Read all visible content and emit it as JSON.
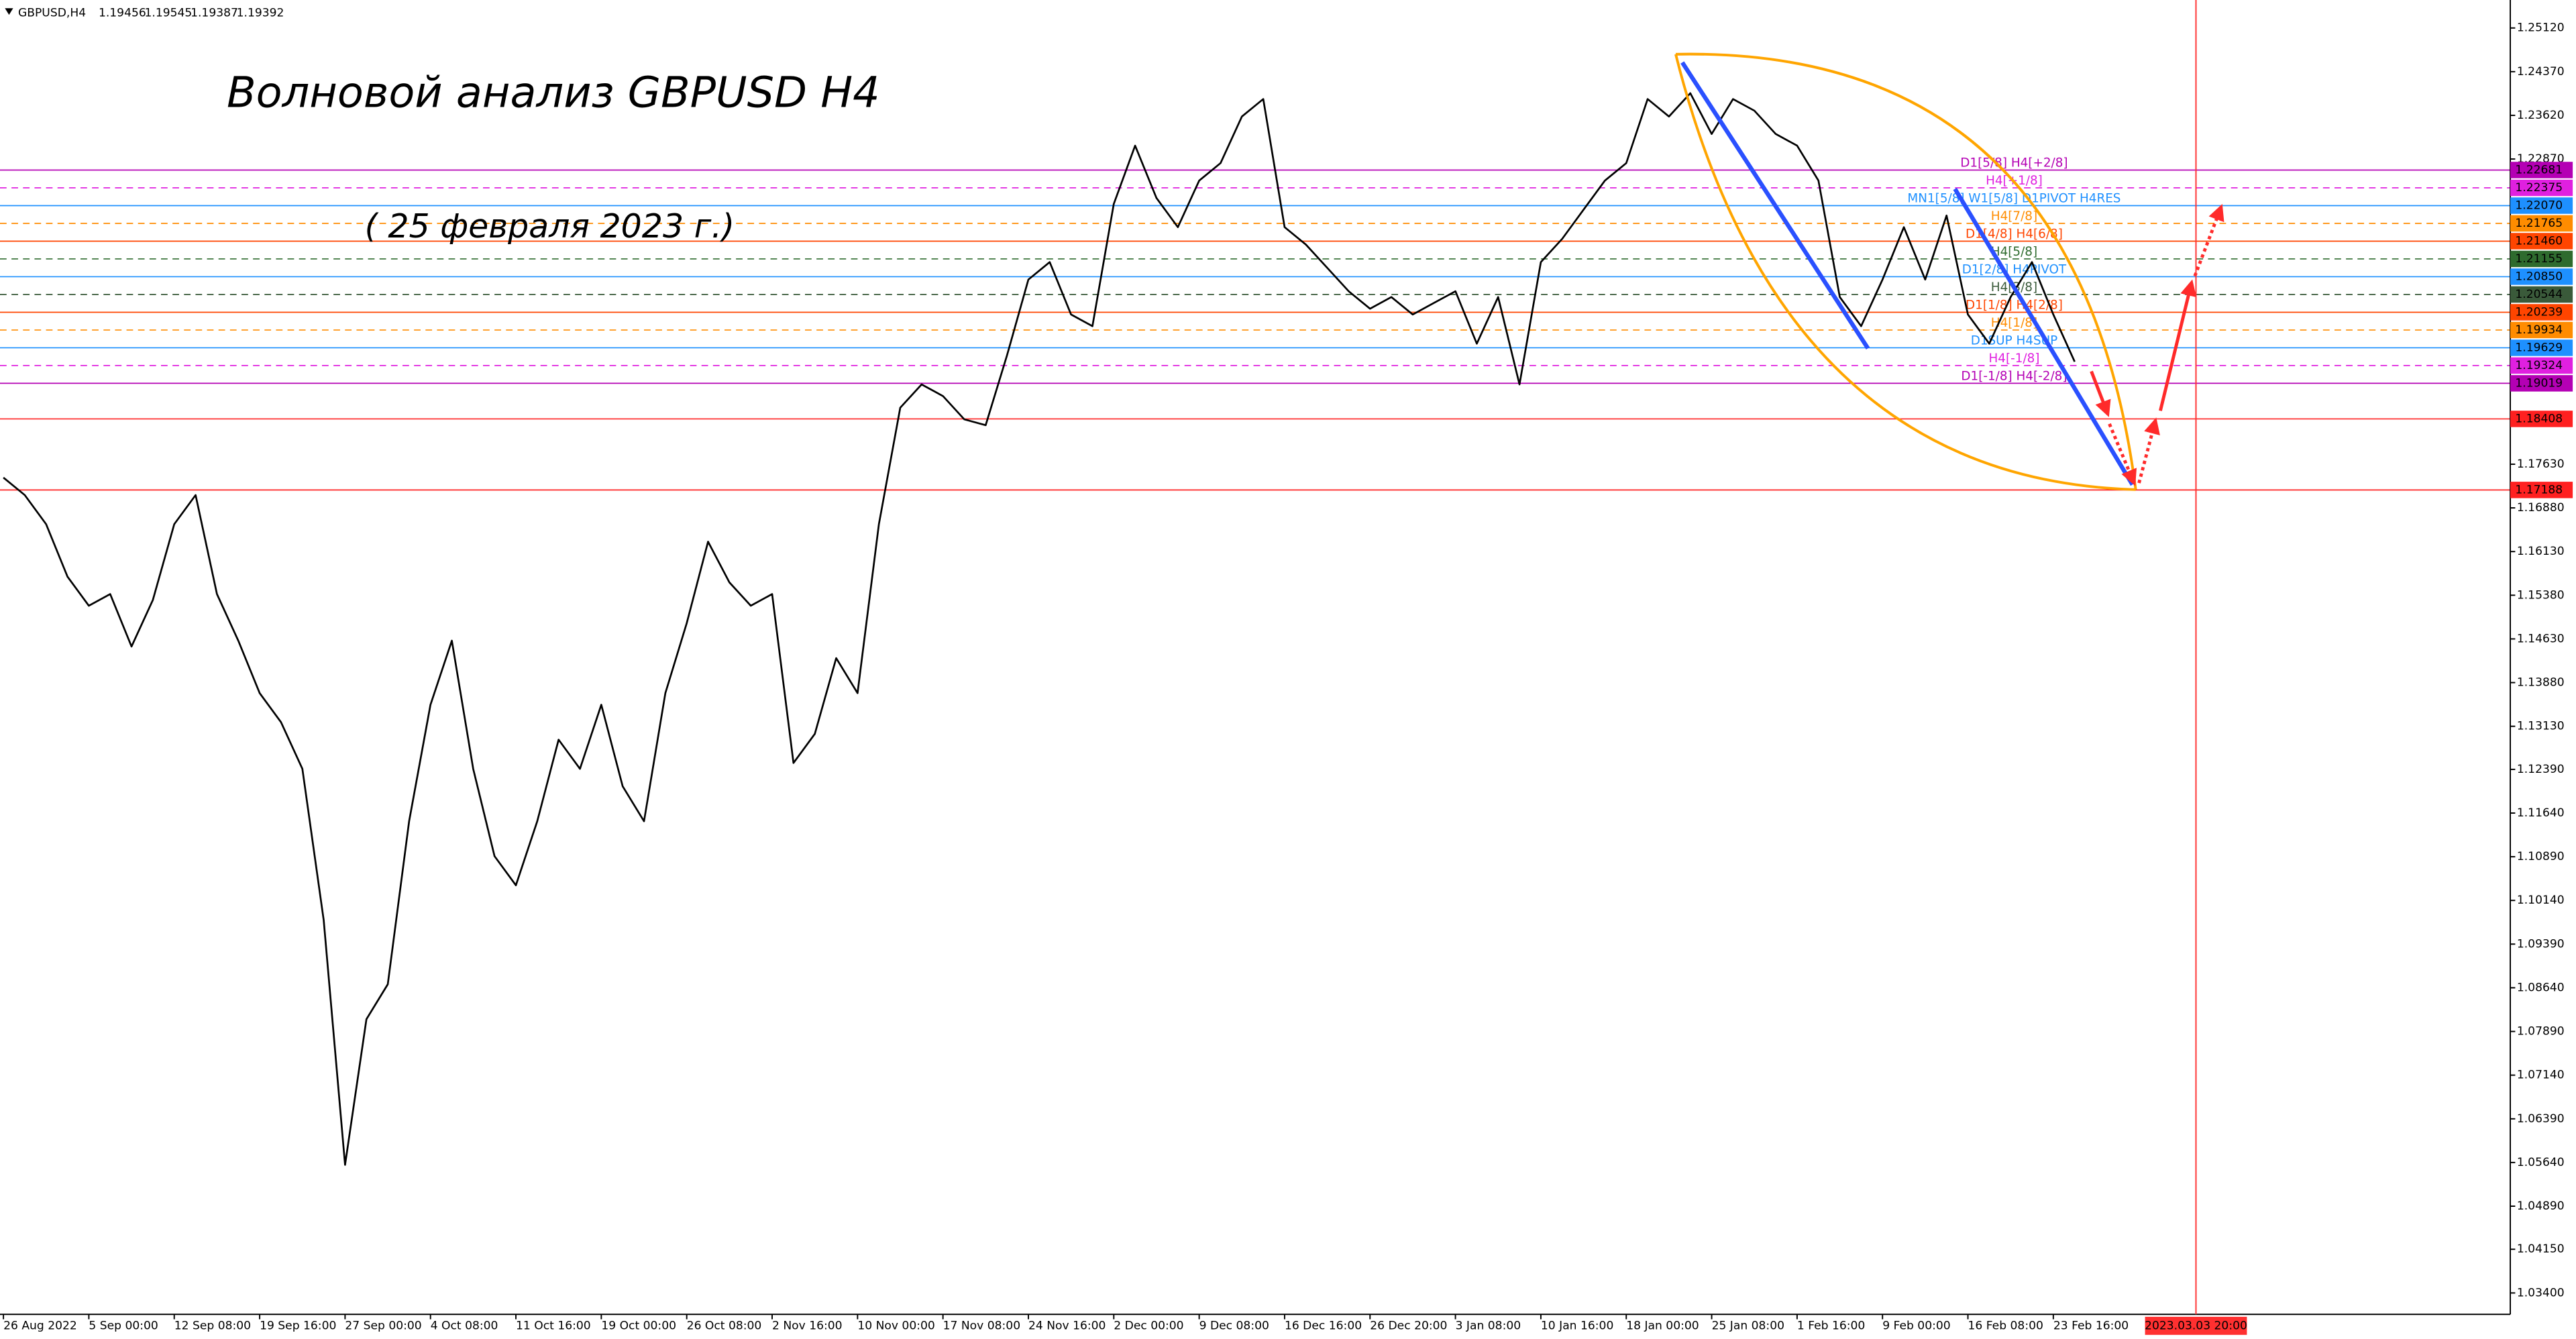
{
  "chart_data": {
    "type": "line",
    "header": {
      "symbol": "GBPUSD,H4",
      "ohlc": [
        1.19456,
        1.19545,
        1.19387,
        1.19392
      ]
    },
    "title": "Волновой анализ GBPUSD H4",
    "subtitle": "( 25 февраля 2023 г.)",
    "xlim": [
      -0.04,
      29.35
    ],
    "ylim": [
      1.03033,
      1.25459
    ],
    "grid": false,
    "xticks": [
      {
        "value": 0,
        "label": "26 Aug 2022"
      },
      {
        "value": 1,
        "label": "5 Sep 00:00"
      },
      {
        "value": 2,
        "label": "12 Sep 08:00"
      },
      {
        "value": 3,
        "label": "19 Sep 16:00"
      },
      {
        "value": 4,
        "label": "27 Sep 00:00"
      },
      {
        "value": 5,
        "label": "4 Oct 08:00"
      },
      {
        "value": 6,
        "label": "11 Oct 16:00"
      },
      {
        "value": 7,
        "label": "19 Oct 00:00"
      },
      {
        "value": 8,
        "label": "26 Oct 08:00"
      },
      {
        "value": 9,
        "label": "2 Nov 16:00"
      },
      {
        "value": 10,
        "label": "10 Nov 00:00"
      },
      {
        "value": 11,
        "label": "17 Nov 08:00"
      },
      {
        "value": 12,
        "label": "24 Nov 16:00"
      },
      {
        "value": 13,
        "label": "2 Dec 00:00"
      },
      {
        "value": 14,
        "label": "9 Dec 08:00"
      },
      {
        "value": 15,
        "label": "16 Dec 16:00"
      },
      {
        "value": 16,
        "label": "26 Dec 20:00"
      },
      {
        "value": 17,
        "label": "3 Jan 08:00"
      },
      {
        "value": 18,
        "label": "10 Jan 16:00"
      },
      {
        "value": 19,
        "label": "18 Jan 00:00"
      },
      {
        "value": 20,
        "label": "25 Jan 08:00"
      },
      {
        "value": 21,
        "label": "1 Feb 16:00"
      },
      {
        "value": 22,
        "label": "9 Feb 00:00"
      },
      {
        "value": 23,
        "label": "16 Feb 08:00"
      },
      {
        "value": 24,
        "label": "23 Feb 16:00"
      }
    ],
    "cursor": {
      "value": 25.67,
      "label": "2023.03.03 20:00",
      "color": "#ff3030"
    },
    "yticks": [
      {
        "value": 1.2512,
        "label": "1.25120"
      },
      {
        "value": 1.2437,
        "label": "1.24370"
      },
      {
        "value": 1.2362,
        "label": "1.23620"
      },
      {
        "value": 1.2287,
        "label": "1.22870"
      },
      {
        "value": 1.1763,
        "label": "1.17630"
      },
      {
        "value": 1.1688,
        "label": "1.16880"
      },
      {
        "value": 1.1613,
        "label": "1.16130"
      },
      {
        "value": 1.1538,
        "label": "1.15380"
      },
      {
        "value": 1.1463,
        "label": "1.14630"
      },
      {
        "value": 1.1388,
        "label": "1.13880"
      },
      {
        "value": 1.1313,
        "label": "1.13130"
      },
      {
        "value": 1.1239,
        "label": "1.12390"
      },
      {
        "value": 1.1164,
        "label": "1.11640"
      },
      {
        "value": 1.1089,
        "label": "1.10890"
      },
      {
        "value": 1.1014,
        "label": "1.10140"
      },
      {
        "value": 1.0939,
        "label": "1.09390"
      },
      {
        "value": 1.0864,
        "label": "1.08640"
      },
      {
        "value": 1.0789,
        "label": "1.07890"
      },
      {
        "value": 1.0714,
        "label": "1.07140"
      },
      {
        "value": 1.0639,
        "label": "1.06390"
      },
      {
        "value": 1.0564,
        "label": "1.05640"
      },
      {
        "value": 1.0489,
        "label": "1.04890"
      },
      {
        "value": 1.0415,
        "label": "1.04150"
      },
      {
        "value": 1.034,
        "label": "1.03400"
      }
    ],
    "levels": [
      {
        "value": 1.22681,
        "label": "1.22681",
        "text": "D1[5/8] H4[+2/8]",
        "color": "#b400b4",
        "dashed": false
      },
      {
        "value": 1.22375,
        "label": "1.22375",
        "text": "H4[+1/8]",
        "color": "#e020e0",
        "dashed": true
      },
      {
        "value": 1.2207,
        "label": "1.22070",
        "text": "MN1[5/8] W1[5/8] D1PIVOT H4RES",
        "color": "#1e90ff",
        "dashed": false
      },
      {
        "value": 1.21765,
        "label": "1.21765",
        "text": "H4[7/8]",
        "color": "#ff8c00",
        "dashed": true
      },
      {
        "value": 1.2146,
        "label": "1.21460",
        "text": "D1[4/8] H4[6/8]",
        "color": "#ff4500",
        "dashed": false
      },
      {
        "value": 1.21155,
        "label": "1.21155",
        "text": "H4[5/8]",
        "color": "#2e6b2e",
        "dashed": true
      },
      {
        "value": 1.2085,
        "label": "1.20850",
        "text": "D1[2/8] H4PIVOT",
        "color": "#1e90ff",
        "dashed": false
      },
      {
        "value": 1.20544,
        "label": "1.20544",
        "text": "H4[3/8]",
        "color": "#3a5a3a",
        "dashed": true
      },
      {
        "value": 1.20239,
        "label": "1.20239",
        "text": "D1[1/8] H4[2/8]",
        "color": "#ff4500",
        "dashed": false
      },
      {
        "value": 1.19934,
        "label": "1.19934",
        "text": "H4[1/8]",
        "color": "#ff8c00",
        "dashed": true
      },
      {
        "value": 1.19629,
        "label": "1.19629",
        "text": "D1SUP H4SUP",
        "color": "#1e90ff",
        "dashed": false
      },
      {
        "value": 1.19324,
        "label": "1.19324",
        "text": "H4[-1/8]",
        "color": "#e020e0",
        "dashed": true
      },
      {
        "value": 1.19019,
        "label": "1.19019",
        "text": "D1[-1/8] H4[-2/8]",
        "color": "#b400b4",
        "dashed": false
      },
      {
        "value": 1.18408,
        "label": "1.18408",
        "color": "#ff2020",
        "dashed": false
      },
      {
        "value": 1.17188,
        "label": "1.17188",
        "color": "#ff2020",
        "dashed": false
      }
    ],
    "series": [
      {
        "name": "GBPUSD,H4",
        "color": "#000000",
        "x": [
          0,
          0.25,
          0.5,
          0.75,
          1,
          1.25,
          1.5,
          1.75,
          2,
          2.25,
          2.5,
          2.75,
          3,
          3.25,
          3.5,
          3.75,
          4,
          4.25,
          4.5,
          4.75,
          5,
          5.25,
          5.5,
          5.75,
          6,
          6.25,
          6.5,
          6.75,
          7,
          7.25,
          7.5,
          7.75,
          8,
          8.25,
          8.5,
          8.75,
          9,
          9.25,
          9.5,
          9.75,
          10,
          10.25,
          10.5,
          10.75,
          11,
          11.25,
          11.5,
          11.75,
          12,
          12.25,
          12.5,
          12.75,
          13,
          13.25,
          13.5,
          13.75,
          14,
          14.25,
          14.5,
          14.75,
          15,
          15.25,
          15.5,
          15.75,
          16,
          16.25,
          16.5,
          16.75,
          17,
          17.25,
          17.5,
          17.75,
          18,
          18.25,
          18.5,
          18.75,
          19,
          19.25,
          19.5,
          19.75,
          20,
          20.25,
          20.5,
          20.75,
          21,
          21.25,
          21.5,
          21.75,
          22,
          22.25,
          22.5,
          22.75,
          23,
          23.25,
          23.5,
          23.75,
          24,
          24.25
        ],
        "values": [
          1.174,
          1.171,
          1.166,
          1.157,
          1.152,
          1.154,
          1.145,
          1.153,
          1.166,
          1.171,
          1.154,
          1.146,
          1.137,
          1.132,
          1.124,
          1.098,
          1.056,
          1.081,
          1.087,
          1.115,
          1.135,
          1.146,
          1.124,
          1.109,
          1.104,
          1.115,
          1.129,
          1.124,
          1.135,
          1.121,
          1.115,
          1.137,
          1.149,
          1.163,
          1.156,
          1.152,
          1.154,
          1.125,
          1.13,
          1.143,
          1.137,
          1.166,
          1.186,
          1.19,
          1.188,
          1.184,
          1.183,
          1.195,
          1.208,
          1.211,
          1.202,
          1.2,
          1.221,
          1.231,
          1.222,
          1.217,
          1.225,
          1.228,
          1.236,
          1.239,
          1.217,
          1.214,
          1.21,
          1.206,
          1.203,
          1.205,
          1.202,
          1.204,
          1.206,
          1.197,
          1.205,
          1.19,
          1.211,
          1.215,
          1.22,
          1.225,
          1.228,
          1.239,
          1.236,
          1.24,
          1.233,
          1.239,
          1.237,
          1.233,
          1.231,
          1.225,
          1.205,
          1.2,
          1.208,
          1.217,
          1.208,
          1.219,
          1.202,
          1.197,
          1.205,
          1.211,
          1.202,
          1.1939
        ]
      }
    ]
  }
}
